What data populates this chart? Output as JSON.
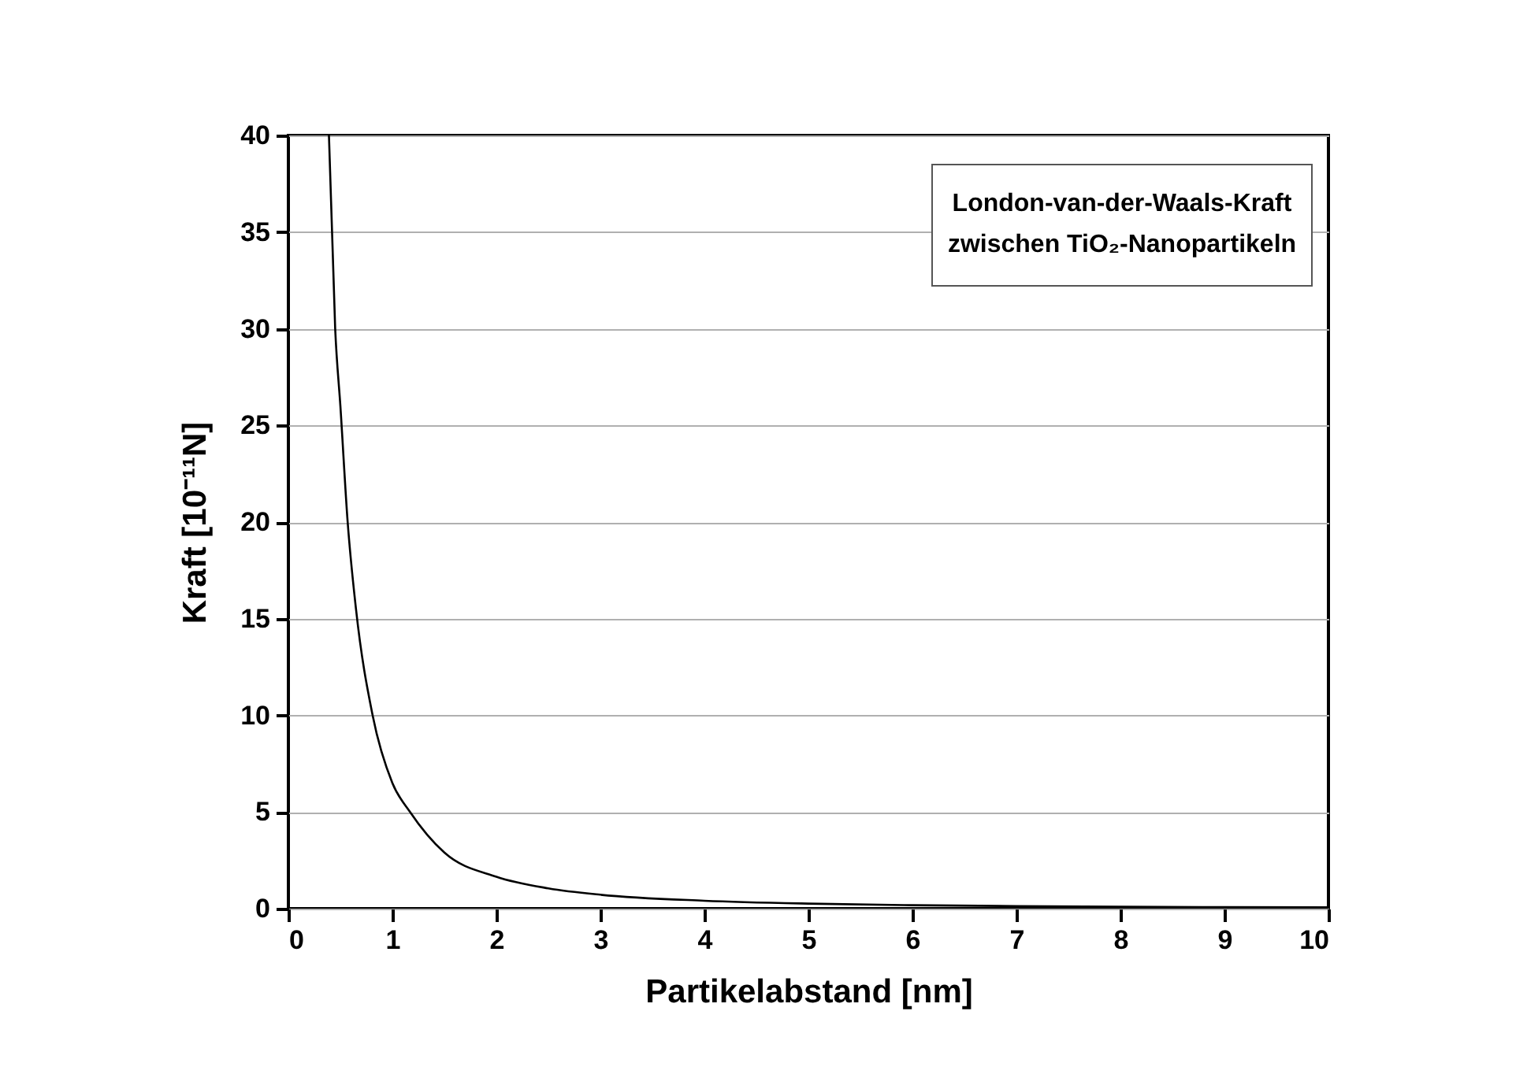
{
  "chart_data": {
    "type": "line",
    "xlabel": "Partikelabstand [nm]",
    "ylabel": "Kraft [10⁻¹¹N]",
    "annotations": [
      "London-van-der-Waals-Kraft",
      "zwischen TiO₂-Nanopartikeln"
    ],
    "x": [
      0.39,
      0.45,
      0.5,
      0.57,
      0.65,
      0.81,
      1.0,
      1.17,
      1.5,
      2,
      2.5,
      3,
      4,
      5,
      6,
      7,
      8,
      9,
      10
    ],
    "series": [
      {
        "color": "#000000",
        "values": [
          40,
          30,
          26,
          20,
          15.5,
          10,
          6.5,
          5,
          2.9,
          1.65,
          1.05,
          0.72,
          0.41,
          0.26,
          0.18,
          0.13,
          0.1,
          0.08,
          0.065
        ]
      }
    ],
    "xlim": [
      0,
      10
    ],
    "xticks": [
      0,
      1,
      2,
      3,
      4,
      5,
      6,
      7,
      8,
      9,
      10
    ],
    "ylim": [
      0,
      40
    ],
    "yticks": [
      0,
      5,
      10,
      15,
      20,
      25,
      30,
      35,
      40
    ],
    "grid": "y",
    "legend": false,
    "marker": "none",
    "line_style": "solid"
  }
}
